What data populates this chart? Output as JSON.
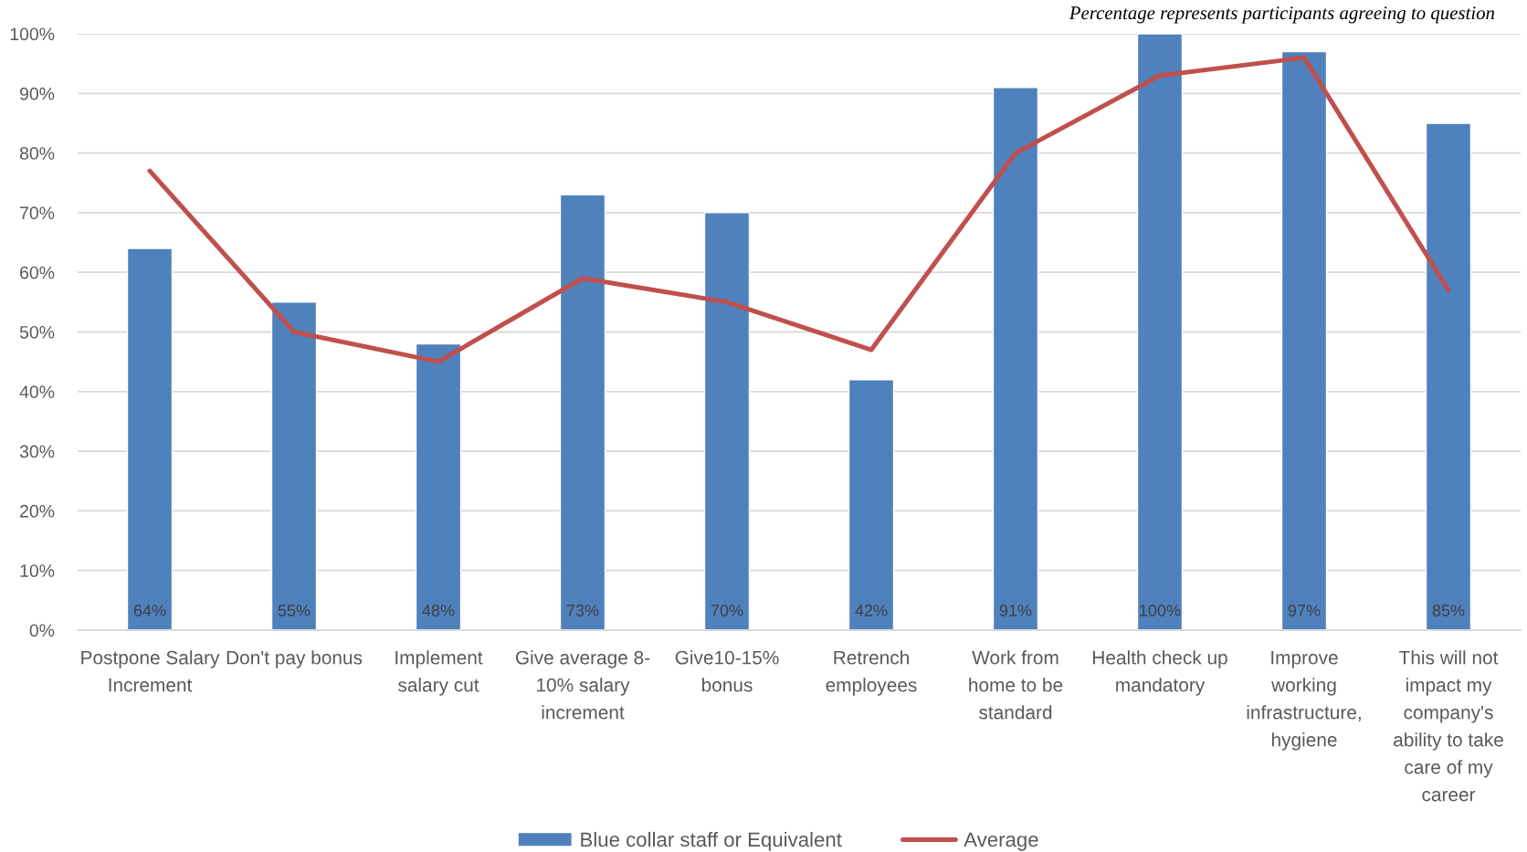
{
  "chart_data": {
    "type": "bar",
    "categories": [
      "Postpone Salary\nIncrement",
      "Don't pay bonus",
      "Implement\nsalary cut",
      "Give average 8-\n10% salary\nincrement",
      "Give10-15%\nbonus",
      "Retrench\nemployees",
      "Work from\nhome to be\nstandard",
      "Health check up\nmandatory",
      "Improve\nworking\ninfrastructure,\nhygiene",
      "This will not\nimpact my\ncompany's\nability to take\ncare of my\ncareer"
    ],
    "series": [
      {
        "name": "Blue collar staff or Equivalent",
        "color": "#4f81bd",
        "values": [
          64,
          55,
          48,
          73,
          70,
          42,
          91,
          100,
          97,
          85
        ],
        "value_labels": [
          "64%",
          "55%",
          "48%",
          "73%",
          "70%",
          "42%",
          "91%",
          "100%",
          "97%",
          "85%"
        ]
      },
      {
        "name": "Average",
        "type": "line",
        "color": "#c0504d",
        "values": [
          77,
          50,
          45,
          59,
          55,
          47,
          80,
          93,
          96,
          57
        ]
      }
    ],
    "ylim": [
      0,
      100
    ],
    "yticks": [
      {
        "value": 0,
        "label": "0%"
      },
      {
        "value": 10,
        "label": "10%"
      },
      {
        "value": 20,
        "label": "20%"
      },
      {
        "value": 30,
        "label": "30%"
      },
      {
        "value": 40,
        "label": "40%"
      },
      {
        "value": 50,
        "label": "50%"
      },
      {
        "value": 60,
        "label": "60%"
      },
      {
        "value": 70,
        "label": "70%"
      },
      {
        "value": 80,
        "label": "80%"
      },
      {
        "value": 90,
        "label": "90%"
      },
      {
        "value": 100,
        "label": "100%"
      }
    ],
    "grid": "y",
    "legend": "bottom",
    "annotations": [
      "Percentage represents participants agreeing to question"
    ]
  }
}
